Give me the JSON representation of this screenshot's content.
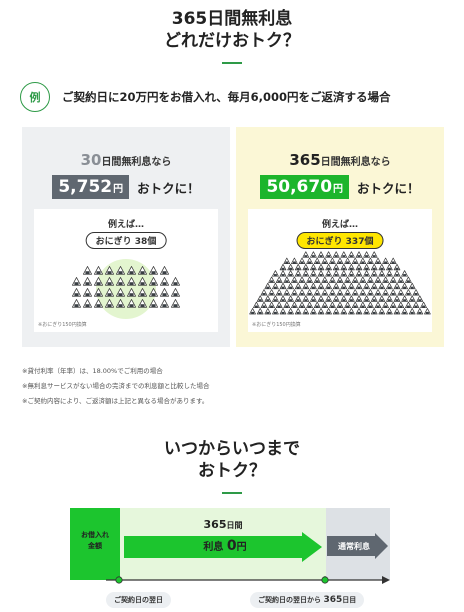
{
  "section1": {
    "title_line1": "365日間無利息",
    "title_line2": "どれだけおトク？"
  },
  "example": {
    "badge": "例",
    "text": "ご契約日に20万円をお借入れ、毎月6,000円をご返済する場合"
  },
  "panel_left": {
    "days": "30",
    "days_unit": "日間",
    "head_rest": "無利息なら",
    "amount": "5,752",
    "amount_unit": "円",
    "otoku": "おトクに！",
    "eg_label": "例えば…",
    "pill": "おにぎり 38個",
    "small_note": "※おにぎり150円換算"
  },
  "panel_right": {
    "days": "365",
    "days_unit": "日間",
    "head_rest": "無利息なら",
    "amount": "50,670",
    "amount_unit": "円",
    "otoku": "おトクに！",
    "eg_label": "例えば…",
    "pill": "おにぎり 337個",
    "small_note": "※おにぎり150円換算"
  },
  "notes": [
    "※貸付利率（年率）は、18.00%でご利用の場合",
    "※無利息サービスがない場合の完済までの利息額と比較した場合",
    "※ご契約内容により、ご返済額は上記と異なる場合があります。"
  ],
  "section2": {
    "title_line1": "いつからいつまで",
    "title_line2": "おトク？"
  },
  "diagram": {
    "borrow_line1": "お借入れ",
    "borrow_line2": "金額",
    "days": "365",
    "days_unit": "日間",
    "interest_label": "利息",
    "interest_value": "0",
    "interest_unit": "円",
    "normal_interest": "通常利息",
    "start_label": "ご契約日の翌日",
    "end_label_prefix": "ご契約日の翌日から",
    "end_days": "365",
    "end_suffix": "日目"
  },
  "colors": {
    "accent_green": "#1cb52c",
    "dark_green": "#2e9a47",
    "grey_box": "#5f6770",
    "pill_yellow": "#ffe600"
  },
  "figures": {
    "left_onigiri_count": 38,
    "right_onigiri_count": 337
  }
}
